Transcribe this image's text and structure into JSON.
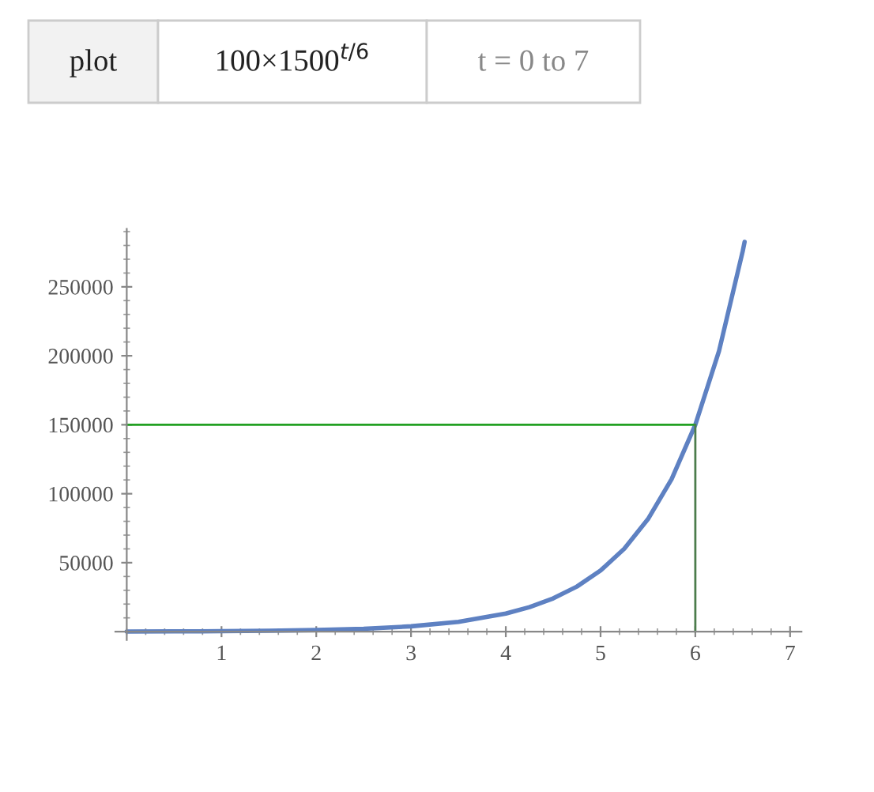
{
  "chart_data": {
    "type": "line",
    "annotations": [
      "plot",
      "100×1500$^{t/6}$",
      "t = 0 to 7"
    ],
    "xlim": [
      -0.12,
      7.12
    ],
    "xticks": [
      1,
      2,
      3,
      4,
      5,
      6,
      7
    ],
    "ylim": [
      -6000,
      292000
    ],
    "yticks": [
      50000,
      100000,
      150000,
      200000,
      250000
    ],
    "grid": false,
    "legend": false,
    "marker": "none",
    "line_style": "solid",
    "series": [
      {
        "color": "#5e81c2",
        "x": [
          0,
          0.5,
          1,
          1.5,
          2,
          2.5,
          3,
          3.5,
          4,
          4.25,
          4.5,
          4.75,
          5,
          5.25,
          5.5,
          5.75,
          6,
          6.25,
          6.5,
          6.52
        ],
        "values": [
          100,
          184,
          338,
          622,
          1145,
          2105,
          3873,
          7124,
          13100,
          17770,
          24100,
          32680,
          44320,
          60100,
          81540,
          110600,
          150000,
          203400,
          275800,
          282600
        ]
      },
      {
        "color": "#22a022",
        "x": [
          0,
          6
        ],
        "values": [
          150000,
          150000
        ]
      },
      {
        "color": "#4c7c4c",
        "x": [
          6,
          6
        ],
        "values": [
          0,
          150000
        ]
      }
    ]
  }
}
